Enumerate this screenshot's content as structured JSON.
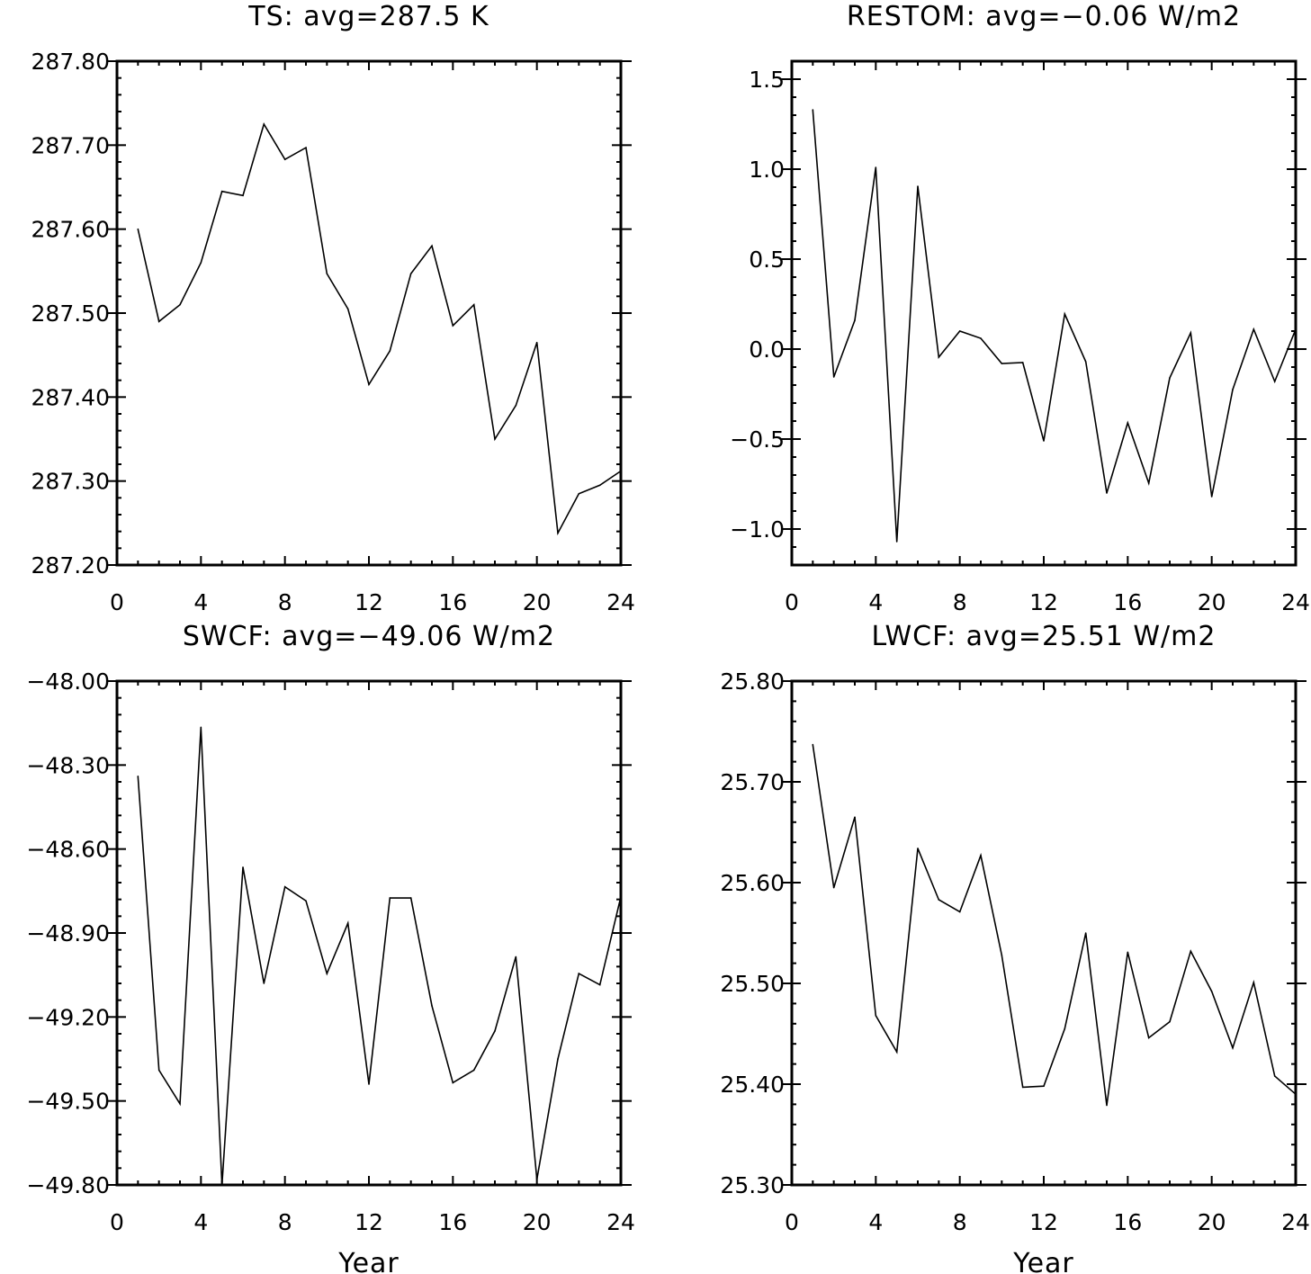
{
  "chart_data": [
    {
      "type": "line",
      "title": "TS: avg=287.5 K",
      "xlabel": "",
      "ylabel": "",
      "xlim": [
        0,
        24
      ],
      "ylim": [
        287.2,
        287.8
      ],
      "x_ticks": [
        "0",
        "4",
        "8",
        "12",
        "16",
        "20",
        "24"
      ],
      "y_ticks": [
        "287.20",
        "287.30",
        "287.40",
        "287.50",
        "287.60",
        "287.70",
        "287.80"
      ],
      "x": [
        1,
        2,
        3,
        4,
        5,
        6,
        7,
        8,
        9,
        10,
        11,
        12,
        13,
        14,
        15,
        16,
        17,
        18,
        19,
        20,
        21,
        22,
        23,
        24
      ],
      "values": [
        287.6,
        287.49,
        287.51,
        287.56,
        287.645,
        287.64,
        287.725,
        287.683,
        287.697,
        287.547,
        287.505,
        287.415,
        287.455,
        287.547,
        287.58,
        287.485,
        287.51,
        287.35,
        287.39,
        287.465,
        287.238,
        287.285,
        287.295,
        287.312
      ],
      "grid": false,
      "color": "#000000"
    },
    {
      "type": "line",
      "title": "RESTOM: avg=−0.06 W/m2",
      "xlabel": "",
      "ylabel": "",
      "xlim": [
        0,
        24
      ],
      "ylim": [
        -1.2,
        1.6
      ],
      "x_ticks": [
        "0",
        "4",
        "8",
        "12",
        "16",
        "20",
        "24"
      ],
      "y_ticks": [
        "−1.0",
        "−0.5",
        "0.0",
        "0.5",
        "1.0",
        "1.5"
      ],
      "y_tick_values": [
        -1.0,
        -0.5,
        0.0,
        0.5,
        1.0,
        1.5
      ],
      "x": [
        1,
        2,
        3,
        4,
        5,
        6,
        7,
        8,
        9,
        10,
        11,
        12,
        13,
        14,
        15,
        16,
        17,
        18,
        19,
        20,
        21,
        22,
        23,
        24
      ],
      "values": [
        1.33,
        -0.155,
        0.16,
        1.01,
        -1.07,
        0.905,
        -0.045,
        0.1,
        0.06,
        -0.08,
        -0.075,
        -0.51,
        0.195,
        -0.07,
        -0.8,
        -0.41,
        -0.745,
        -0.16,
        0.09,
        -0.82,
        -0.225,
        0.11,
        -0.18,
        0.11
      ],
      "grid": false,
      "color": "#000000"
    },
    {
      "type": "line",
      "title": "SWCF: avg=−49.06 W/m2",
      "xlabel": "Year",
      "ylabel": "",
      "xlim": [
        0,
        24
      ],
      "ylim": [
        -49.8,
        -48.0
      ],
      "x_ticks": [
        "0",
        "4",
        "8",
        "12",
        "16",
        "20",
        "24"
      ],
      "y_ticks": [
        "−49.80",
        "−49.50",
        "−49.20",
        "−48.90",
        "−48.60",
        "−48.30",
        "−48.00"
      ],
      "y_tick_values": [
        -49.8,
        -49.5,
        -49.2,
        -48.9,
        -48.6,
        -48.3,
        -48.0
      ],
      "x": [
        1,
        2,
        3,
        4,
        5,
        6,
        7,
        8,
        9,
        10,
        11,
        12,
        13,
        14,
        15,
        16,
        17,
        18,
        19,
        20,
        21,
        22,
        23,
        24
      ],
      "values": [
        -48.34,
        -49.39,
        -49.51,
        -48.165,
        -49.8,
        -48.665,
        -49.08,
        -48.735,
        -48.785,
        -49.045,
        -48.865,
        -49.44,
        -48.775,
        -48.775,
        -49.16,
        -49.435,
        -49.39,
        -49.25,
        -48.985,
        -49.78,
        -49.35,
        -49.045,
        -49.085,
        -48.77
      ],
      "grid": false,
      "color": "#000000"
    },
    {
      "type": "line",
      "title": "LWCF: avg=25.51 W/m2",
      "xlabel": "Year",
      "ylabel": "",
      "xlim": [
        0,
        24
      ],
      "ylim": [
        25.3,
        25.8
      ],
      "x_ticks": [
        "0",
        "4",
        "8",
        "12",
        "16",
        "20",
        "24"
      ],
      "y_ticks": [
        "25.30",
        "25.40",
        "25.50",
        "25.60",
        "25.70",
        "25.80"
      ],
      "x": [
        1,
        2,
        3,
        4,
        5,
        6,
        7,
        8,
        9,
        10,
        11,
        12,
        13,
        14,
        15,
        16,
        17,
        18,
        19,
        20,
        21,
        22,
        23,
        24
      ],
      "values": [
        25.737,
        25.595,
        25.665,
        25.468,
        25.432,
        25.634,
        25.583,
        25.571,
        25.627,
        25.528,
        25.397,
        25.398,
        25.455,
        25.55,
        25.379,
        25.531,
        25.446,
        25.462,
        25.532,
        25.492,
        25.436,
        25.501,
        25.408,
        25.39
      ],
      "grid": false,
      "color": "#000000"
    }
  ]
}
